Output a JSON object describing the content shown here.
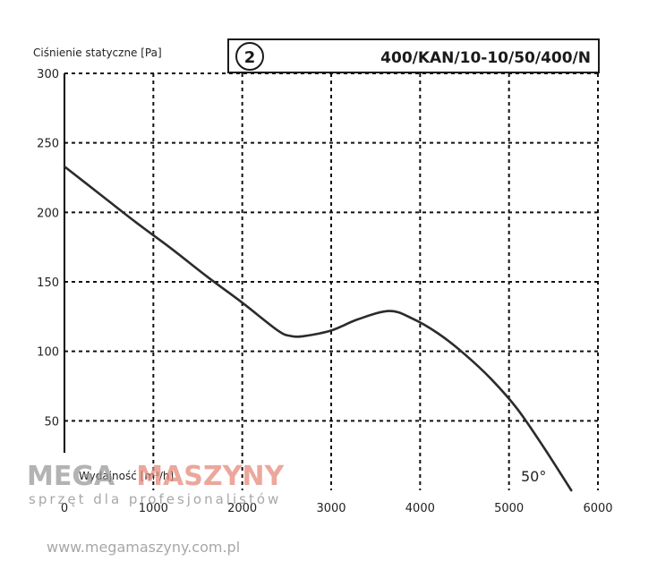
{
  "chart_data": {
    "type": "line",
    "ylabel": "Ciśnienie statyczne [Pa]",
    "xlabel": "Wydajność [m³/h]",
    "curve_number": "2",
    "model": "400/KAN/10-10/50/400/N",
    "curve_label": "50°",
    "xlim": [
      0,
      6000
    ],
    "ylim": [
      0,
      300
    ],
    "x_ticks": [
      0,
      1000,
      2000,
      3000,
      4000,
      5000,
      6000
    ],
    "y_ticks": [
      0,
      50,
      100,
      150,
      200,
      250,
      300
    ],
    "x_tick_labels": [
      "0",
      "1000",
      "2000",
      "3000",
      "4000",
      "5000",
      "6000"
    ],
    "y_tick_labels": [
      "",
      "50",
      "100",
      "150",
      "200",
      "250",
      "300"
    ],
    "grid": true,
    "series": [
      {
        "x": [
          0,
          400,
          800,
          1200,
          1600,
          2000,
          2400,
          2550,
          2700,
          3000,
          3300,
          3650,
          3900,
          4200,
          4500,
          4800,
          5100,
          5400,
          5700
        ],
        "y": [
          233,
          213,
          193,
          174,
          154,
          135,
          115,
          111,
          111,
          115,
          123,
          129,
          124,
          113,
          98,
          80,
          58,
          30,
          0
        ]
      }
    ]
  },
  "watermark": {
    "brand_left": "MEGA",
    "brand_right": "MASZYNY",
    "tagline": "sprzęt dla profesjonalistów",
    "url": "www.megamaszyny.com.pl",
    "brand_color_dark": "#9a9a9a",
    "brand_color_accent": "#e07060"
  }
}
